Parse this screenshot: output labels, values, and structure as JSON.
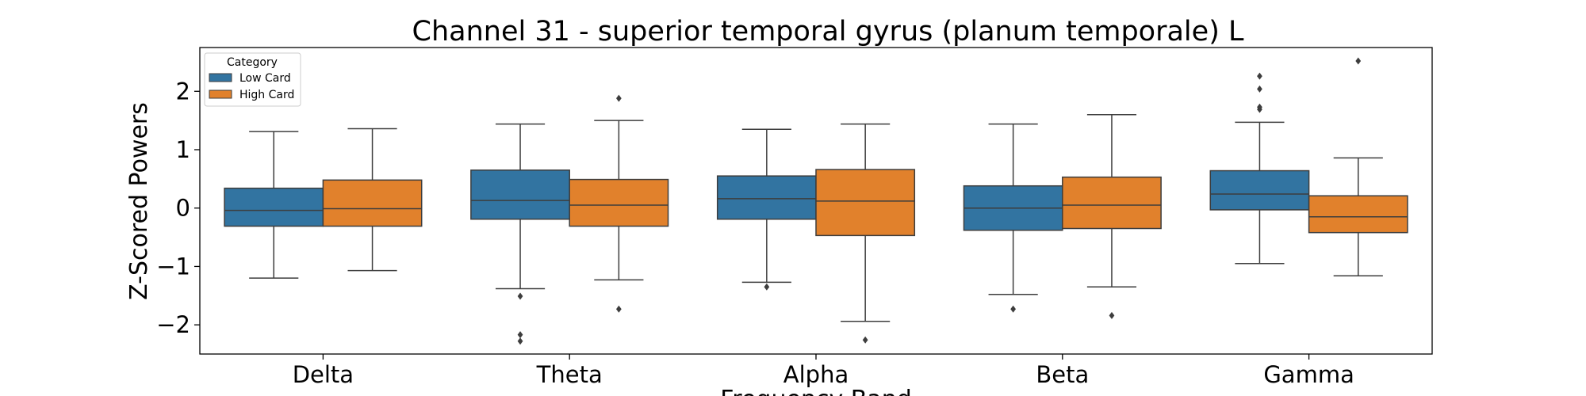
{
  "chart_data": {
    "type": "box",
    "title": "Channel 31 - superior temporal gyrus (planum temporale) L",
    "xlabel": "Frequency Band",
    "ylabel": "Z-Scored Powers",
    "categories": [
      "Delta",
      "Theta",
      "Alpha",
      "Beta",
      "Gamma"
    ],
    "ylim": [
      -2.5,
      2.75
    ],
    "yticks": [
      -2,
      -1,
      0,
      1,
      2
    ],
    "ytick_labels": [
      "−2",
      "−1",
      "0",
      "1",
      "2"
    ],
    "grid": false,
    "legend": {
      "title": "Category",
      "placement": "top-left"
    },
    "series": [
      {
        "name": "Low Card",
        "color": "#3274a1",
        "boxes": [
          {
            "category": "Delta",
            "whisker_low": -1.2,
            "q1": -0.31,
            "median": -0.04,
            "q3": 0.34,
            "whisker_high": 1.31,
            "outliers": []
          },
          {
            "category": "Theta",
            "whisker_low": -1.38,
            "q1": -0.19,
            "median": 0.13,
            "q3": 0.65,
            "whisker_high": 1.44,
            "outliers": [
              -1.51,
              -2.17,
              -2.28
            ]
          },
          {
            "category": "Alpha",
            "whisker_low": -1.27,
            "q1": -0.19,
            "median": 0.16,
            "q3": 0.55,
            "whisker_high": 1.35,
            "outliers": [
              -1.35
            ]
          },
          {
            "category": "Beta",
            "whisker_low": -1.48,
            "q1": -0.38,
            "median": 0.0,
            "q3": 0.38,
            "whisker_high": 1.44,
            "outliers": [
              -1.73
            ]
          },
          {
            "category": "Gamma",
            "whisker_low": -0.95,
            "q1": -0.03,
            "median": 0.24,
            "q3": 0.64,
            "whisker_high": 1.47,
            "outliers": [
              1.69,
              1.73,
              2.04,
              2.26
            ]
          }
        ]
      },
      {
        "name": "High Card",
        "color": "#e1812c",
        "boxes": [
          {
            "category": "Delta",
            "whisker_low": -1.07,
            "q1": -0.31,
            "median": -0.01,
            "q3": 0.48,
            "whisker_high": 1.36,
            "outliers": []
          },
          {
            "category": "Theta",
            "whisker_low": -1.23,
            "q1": -0.31,
            "median": 0.05,
            "q3": 0.49,
            "whisker_high": 1.5,
            "outliers": [
              1.88,
              -1.73
            ]
          },
          {
            "category": "Alpha",
            "whisker_low": -1.94,
            "q1": -0.47,
            "median": 0.12,
            "q3": 0.66,
            "whisker_high": 1.44,
            "outliers": [
              -2.26
            ]
          },
          {
            "category": "Beta",
            "whisker_low": -1.35,
            "q1": -0.35,
            "median": 0.05,
            "q3": 0.53,
            "whisker_high": 1.6,
            "outliers": [
              -1.84
            ]
          },
          {
            "category": "Gamma",
            "whisker_low": -1.16,
            "q1": -0.42,
            "median": -0.15,
            "q3": 0.21,
            "whisker_high": 0.86,
            "outliers": [
              2.52
            ]
          }
        ]
      }
    ]
  }
}
